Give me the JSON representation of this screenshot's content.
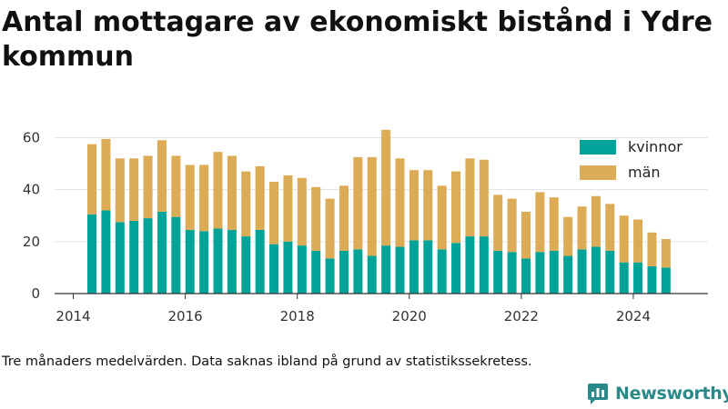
{
  "title": "Antal mottagare av ekonomiskt bistånd i Ydre kommun",
  "footnote": "Tre månaders medelvärden. Data saknas ibland på grund av statistikssekretess.",
  "brand": {
    "name": "Newsworthy",
    "logo_icon": "newsworthy-logo-icon",
    "color": "#2a8a8a"
  },
  "chart_data": {
    "type": "bar",
    "stacked": true,
    "x_ticks": [
      "2014",
      "2016",
      "2018",
      "2020",
      "2022",
      "2024"
    ],
    "y_ticks": [
      "0",
      "20",
      "40",
      "60"
    ],
    "xlim": [
      "2013-09",
      "2025-05"
    ],
    "ylim": [
      0,
      64
    ],
    "grid": "horizontal",
    "legend_position": "top-right",
    "periods": [
      "2014-05",
      "2014-08",
      "2014-11",
      "2015-02",
      "2015-05",
      "2015-08",
      "2015-11",
      "2016-02",
      "2016-05",
      "2016-08",
      "2016-11",
      "2017-02",
      "2017-05",
      "2017-08",
      "2017-11",
      "2018-02",
      "2018-05",
      "2018-08",
      "2018-11",
      "2019-02",
      "2019-05",
      "2019-08",
      "2019-11",
      "2020-02",
      "2020-05",
      "2020-08",
      "2020-11",
      "2021-02",
      "2021-05",
      "2021-08",
      "2021-11",
      "2022-02",
      "2022-05",
      "2022-08",
      "2022-11",
      "2023-02",
      "2023-05",
      "2023-08",
      "2023-11",
      "2024-02",
      "2024-05",
      "2024-08"
    ],
    "series": [
      {
        "name": "kvinnor",
        "color": "#00a398",
        "values": [
          30.5,
          32,
          27.5,
          28,
          29,
          31.5,
          29.5,
          24.5,
          24,
          25,
          24.5,
          22,
          24.5,
          19,
          20,
          18.5,
          16.5,
          13.5,
          16.5,
          17,
          14.5,
          18.5,
          18,
          20.5,
          20.5,
          17,
          19.5,
          22,
          22,
          16.5,
          16,
          13.5,
          16,
          16.5,
          14.5,
          17,
          18,
          16.5,
          12,
          12,
          10.5,
          10
        ]
      },
      {
        "name": "män",
        "color": "#dbab55",
        "values": [
          27,
          27.5,
          24.5,
          24,
          24,
          27.5,
          23.5,
          25,
          25.5,
          29.5,
          28.5,
          25,
          24.5,
          24,
          25.5,
          26,
          24.5,
          23,
          25,
          35.5,
          38,
          44.5,
          34,
          27,
          27,
          24.5,
          27.5,
          30,
          29.5,
          21.5,
          20.5,
          18,
          23,
          20.5,
          15,
          16.5,
          19.5,
          18,
          18,
          16.5,
          13,
          11
        ]
      }
    ]
  }
}
